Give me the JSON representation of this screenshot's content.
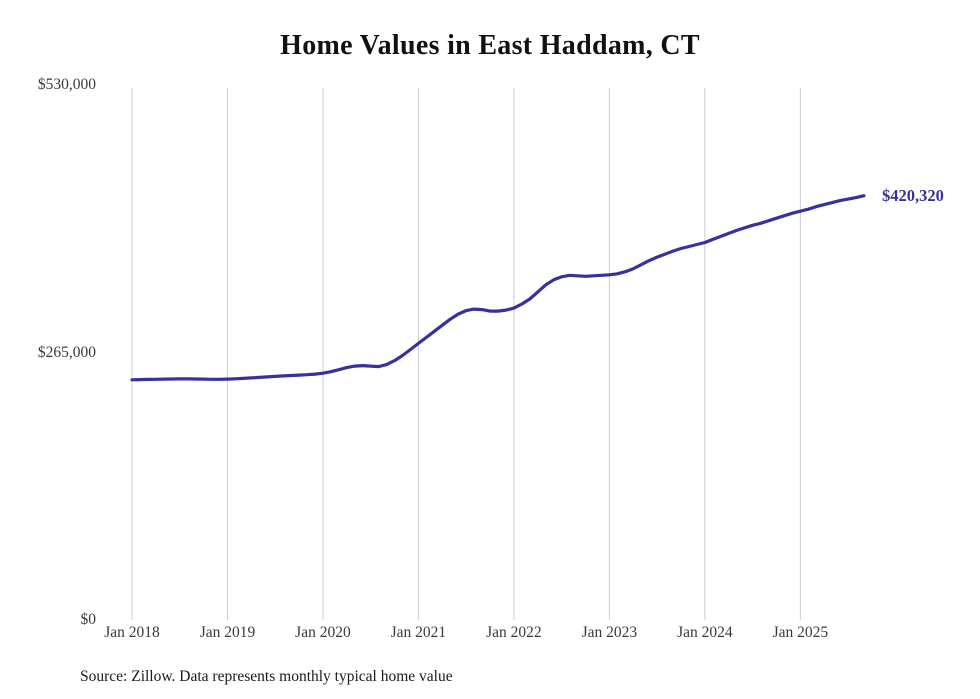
{
  "accent_color": "#38309c",
  "grid_color": "#cccccc",
  "source_note": "Source: Zillow. Data represents monthly typical home value",
  "chart_data": {
    "type": "line",
    "title": "Home Values in East Haddam, CT",
    "xlabel": "",
    "ylabel": "",
    "ylim": [
      0,
      530000
    ],
    "y_ticks": [
      0,
      265000,
      530000
    ],
    "y_tick_labels": [
      "$0",
      "$265,000",
      "$530,000"
    ],
    "x_tick_labels": [
      "Jan 2018",
      "Jan 2019",
      "Jan 2020",
      "Jan 2021",
      "Jan 2022",
      "Jan 2023",
      "Jan 2024",
      "Jan 2025"
    ],
    "x_range": {
      "start": "Jan 2018",
      "interval": "monthly"
    },
    "grid": "vertical-only",
    "legend": "none",
    "end_label": "$420,320",
    "end_value": 420320,
    "series": [
      {
        "name": "Typical home value",
        "values": [
          238000,
          238200,
          238400,
          238500,
          238600,
          238700,
          238800,
          238800,
          238700,
          238600,
          238500,
          238500,
          238600,
          238900,
          239300,
          239800,
          240300,
          240800,
          241300,
          241800,
          242200,
          242600,
          243000,
          243600,
          244500,
          246000,
          248000,
          250000,
          251500,
          252000,
          251500,
          251000,
          253000,
          257000,
          262000,
          268000,
          274000,
          280000,
          286000,
          292000,
          298000,
          303000,
          306500,
          308000,
          307500,
          306000,
          306000,
          307000,
          309000,
          313000,
          318000,
          325000,
          332000,
          337000,
          340000,
          341500,
          341000,
          340500,
          341000,
          341500,
          342000,
          343000,
          345000,
          348000,
          352000,
          356000,
          359500,
          362500,
          365500,
          368000,
          370000,
          372000,
          374000,
          377000,
          380000,
          383000,
          386000,
          388500,
          391000,
          393000,
          395500,
          398000,
          400500,
          403000,
          405000,
          407000,
          409500,
          411500,
          413500,
          415500,
          417000,
          418500,
          420320
        ]
      }
    ]
  }
}
